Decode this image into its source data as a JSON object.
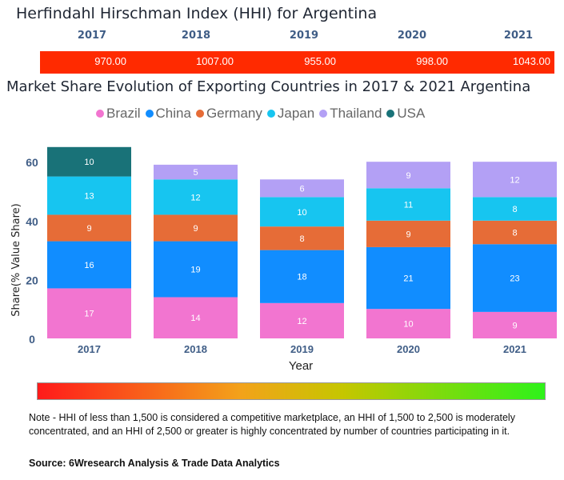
{
  "hhi": {
    "title": "Herfindahl Hirschman Index (HHI) for Argentina",
    "years": [
      "2017",
      "2018",
      "2019",
      "2020",
      "2021"
    ],
    "values": [
      "970.00",
      "1007.00",
      "955.00",
      "998.00",
      "1043.00"
    ],
    "bar_color": "#ff2a00"
  },
  "chart_data": {
    "type": "bar",
    "stacked": true,
    "title": "Market Share Evolution of Exporting Countries in 2017 & 2021 Argentina",
    "xlabel": "Year",
    "ylabel": "Share(% Value Share)",
    "ylim": [
      0,
      65
    ],
    "yticks": [
      "0",
      "20",
      "40",
      "60"
    ],
    "categories": [
      "2017",
      "2018",
      "2019",
      "2020",
      "2021"
    ],
    "series": [
      {
        "name": "Brazil",
        "color": "#f275d0",
        "values": [
          17,
          14,
          12,
          10,
          9
        ]
      },
      {
        "name": "China",
        "color": "#118dff",
        "values": [
          16,
          19,
          18,
          21,
          23
        ]
      },
      {
        "name": "Germany",
        "color": "#e66c37",
        "values": [
          9,
          9,
          8,
          9,
          8
        ]
      },
      {
        "name": "Japan",
        "color": "#17c5f0",
        "values": [
          13,
          12,
          10,
          11,
          8
        ]
      },
      {
        "name": "Thailand",
        "color": "#b3a0f5",
        "values": [
          null,
          5,
          6,
          9,
          12
        ]
      },
      {
        "name": "USA",
        "color": "#197278",
        "values": [
          10,
          null,
          null,
          null,
          null
        ]
      }
    ]
  },
  "note": "Note - HHI of less than 1,500 is considered a competitive marketplace, an HHI of 1,500 to 2,500 is moderately concentrated, and an HHI of 2,500 or greater is highly concentrated by number of countries participating in it.",
  "source": "Source: 6Wresearch Analysis & Trade Data Analytics"
}
